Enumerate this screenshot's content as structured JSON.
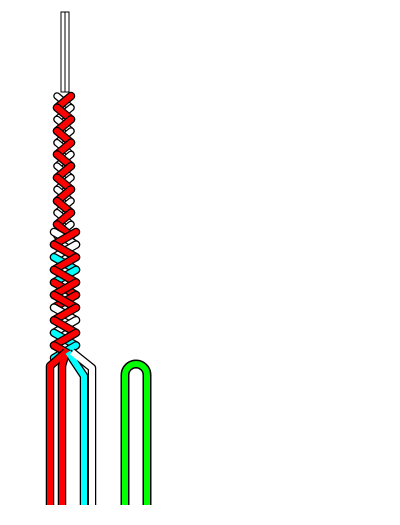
{
  "diagram": {
    "description_free": true,
    "colors": {
      "background": "#ffffff",
      "outline": "#000000",
      "strand_red": "#ff0000",
      "strand_cyan": "#00ffff",
      "strand_white": "#ffffff",
      "loop_green": "#00ff00"
    },
    "braid": {
      "upper_section_strands": [
        "red",
        "white"
      ],
      "lower_section_strands": [
        "red",
        "white",
        "cyan"
      ],
      "upper_crossings": 12,
      "lower_crossings": 10
    },
    "legs": [
      "red",
      "red",
      "cyan",
      "white"
    ],
    "loop": {
      "color": "green"
    }
  }
}
